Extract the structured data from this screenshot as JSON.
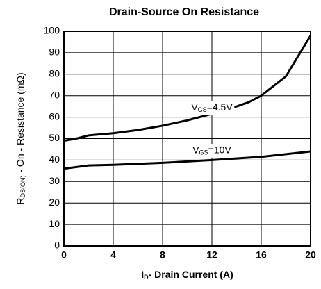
{
  "chart_data": {
    "type": "line",
    "title": "Drain-Source On Resistance",
    "x_label": {
      "main": "I",
      "sub": "D",
      "rest": "- Drain Current (A)"
    },
    "y_label": {
      "main": "R",
      "sub": "DS(ON)",
      "rest": " - On - Resistance (mΩ)"
    },
    "xlim": [
      0,
      20
    ],
    "xticks": [
      0,
      4,
      8,
      12,
      16,
      20
    ],
    "ylim": [
      0,
      100
    ],
    "yticks": [
      0,
      10,
      20,
      30,
      40,
      50,
      60,
      70,
      80,
      90,
      100
    ],
    "grid": true,
    "series": [
      {
        "label": {
          "main": "V",
          "sub": "GS",
          "rest": "=4.5V"
        },
        "color": "#000000",
        "x": [
          0,
          1,
          2,
          4,
          6,
          8,
          10,
          12,
          14,
          15,
          16,
          18,
          20
        ],
        "values": [
          49,
          50,
          51.5,
          52.5,
          54,
          56,
          58.5,
          61.5,
          65,
          67,
          70,
          79,
          98
        ]
      },
      {
        "label": {
          "main": "V",
          "sub": "GS",
          "rest": "=10V"
        },
        "color": "#000000",
        "x": [
          0,
          2,
          4,
          8,
          12,
          16,
          20
        ],
        "values": [
          36,
          37.5,
          37.8,
          38.7,
          40,
          41.5,
          44
        ]
      }
    ]
  }
}
